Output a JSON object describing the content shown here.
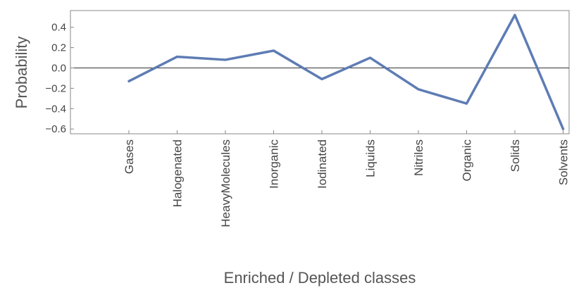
{
  "chart_data": {
    "type": "line",
    "title": "",
    "xlabel": "Enriched / Depleted classes",
    "ylabel": "Probability",
    "categories": [
      "Gases",
      "Halogenated",
      "HeavyMolecules",
      "Inorganic",
      "Iodinated",
      "Liquids",
      "Nitriles",
      "Organic",
      "Solids",
      "Solvents"
    ],
    "series": [
      {
        "values": [
          -0.13,
          0.11,
          0.08,
          0.17,
          -0.11,
          0.1,
          -0.21,
          -0.35,
          0.52,
          -0.6
        ]
      }
    ],
    "yticks": [
      "-0.6",
      "-0.4",
      "-0.2",
      "0.0",
      "0.2",
      "0.4"
    ],
    "ylim": [
      -0.65,
      0.56
    ],
    "grid": false,
    "line_color": "#5E7CB4"
  }
}
